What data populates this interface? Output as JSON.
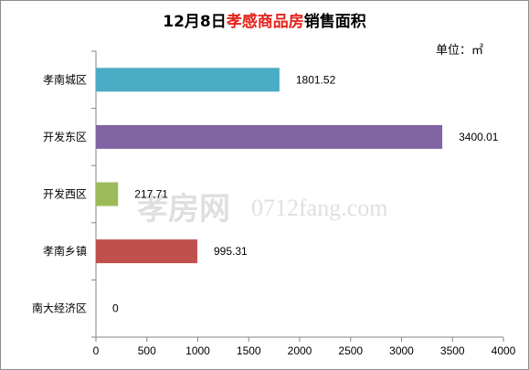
{
  "chart_data": {
    "type": "bar",
    "orientation": "horizontal",
    "title": {
      "date": "12月8日",
      "highlight": "孝感商品房",
      "suffix": "销售面积"
    },
    "unit_label": "单位：㎡",
    "categories": [
      "孝南城区",
      "开发东区",
      "开发西区",
      "孝南乡镇",
      "南大经济区"
    ],
    "values": [
      1801.52,
      3400.01,
      217.71,
      995.31,
      0
    ],
    "value_labels": [
      "1801.52",
      "3400.01",
      "217.71",
      "995.31",
      "0"
    ],
    "colors": [
      "#4bacc6",
      "#8064a2",
      "#9bbb59",
      "#c0504d",
      "#4f81bd"
    ],
    "xlim": [
      0,
      4000
    ],
    "xticks": [
      0,
      500,
      1000,
      1500,
      2000,
      2500,
      3000,
      3500,
      4000
    ],
    "grid": false,
    "legend": "none"
  },
  "watermark": {
    "brand": "孝房网",
    "site": "0712fang.com"
  }
}
